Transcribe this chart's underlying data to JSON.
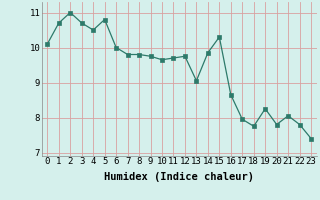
{
  "x": [
    0,
    1,
    2,
    3,
    4,
    5,
    6,
    7,
    8,
    9,
    10,
    11,
    12,
    13,
    14,
    15,
    16,
    17,
    18,
    19,
    20,
    21,
    22,
    23
  ],
  "y": [
    10.1,
    10.7,
    11.0,
    10.7,
    10.5,
    10.8,
    10.0,
    9.8,
    9.8,
    9.75,
    9.65,
    9.7,
    9.75,
    9.05,
    9.85,
    10.3,
    8.65,
    7.95,
    7.75,
    8.25,
    7.8,
    8.05,
    7.8,
    7.4
  ],
  "xlabel": "Humidex (Indice chaleur)",
  "line_color": "#2d7a6a",
  "marker_color": "#2d7a6a",
  "bg_color": "#d5f0ec",
  "grid_color": "#d9a0a0",
  "ylim": [
    6.9,
    11.3
  ],
  "xlim": [
    -0.5,
    23.5
  ],
  "yticks": [
    7,
    8,
    9,
    10,
    11
  ],
  "xticks": [
    0,
    1,
    2,
    3,
    4,
    5,
    6,
    7,
    8,
    9,
    10,
    11,
    12,
    13,
    14,
    15,
    16,
    17,
    18,
    19,
    20,
    21,
    22,
    23
  ],
  "tick_fontsize": 6.5,
  "xlabel_fontsize": 7.5
}
